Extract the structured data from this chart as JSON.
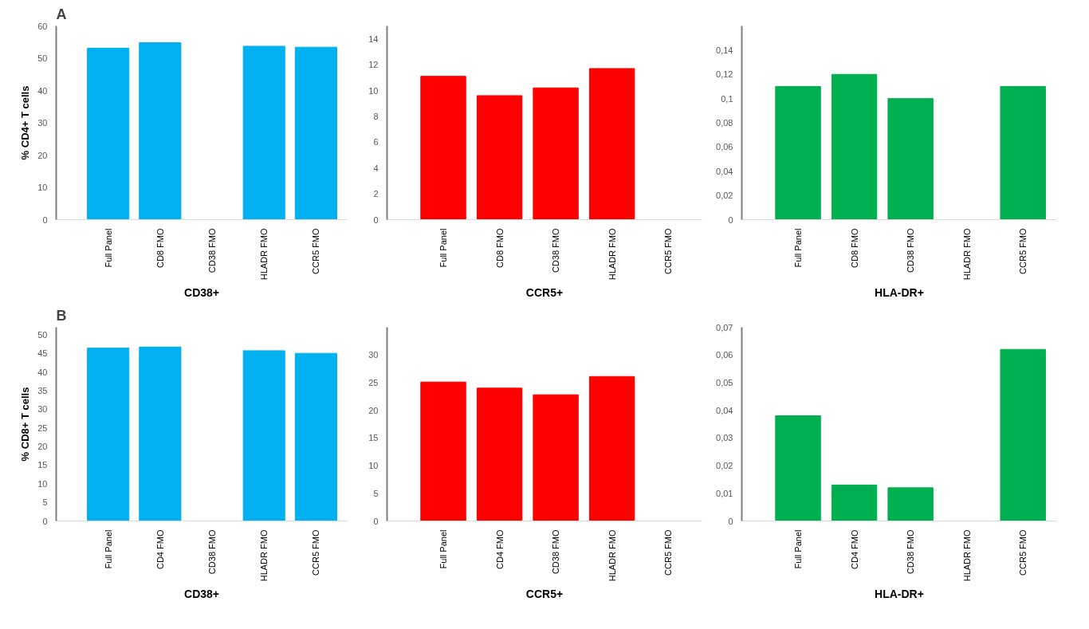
{
  "chart_data": [
    {
      "type": "bar",
      "annotations": [
        "A"
      ],
      "ylabel": "% CD4+ T cells",
      "xlabel": "CD38+",
      "categories": [
        "Full Panel",
        "CD8 FMO",
        "CD38 FMO",
        "HLADR FMO",
        "CCR5 FMO"
      ],
      "values": [
        53.1,
        54.8,
        null,
        53.7,
        53.4
      ],
      "color": "#00b0f0",
      "ylim": [
        0,
        60
      ],
      "yticks": [
        0,
        10,
        20,
        30,
        40,
        50,
        60
      ],
      "grid": false
    },
    {
      "type": "bar",
      "xlabel": "CCR5+",
      "categories": [
        "Full Panel",
        "CD8 FMO",
        "CD38 FMO",
        "HLADR FMO",
        "CCR5 FMO"
      ],
      "values": [
        11.1,
        9.6,
        10.2,
        11.7,
        null
      ],
      "color": "#ff0000",
      "ylim": [
        0,
        15
      ],
      "yticks": [
        0,
        2,
        4,
        6,
        8,
        10,
        12,
        14
      ],
      "grid": false
    },
    {
      "type": "bar",
      "xlabel": "HLA-DR+",
      "categories": [
        "Full Panel",
        "CD8 FMO",
        "CD38 FMO",
        "HLADR FMO",
        "CCR5 FMO"
      ],
      "values": [
        0.11,
        0.12,
        0.1,
        null,
        0.11
      ],
      "color": "#00b050",
      "ylim": [
        0,
        0.16
      ],
      "yticks": [
        0,
        {
          "value": 0.02,
          "label": "0,02"
        },
        {
          "value": 0.04,
          "label": "0,04"
        },
        {
          "value": 0.06,
          "label": "0,06"
        },
        {
          "value": 0.08,
          "label": "0,08"
        },
        {
          "value": 0.1,
          "label": "0,1"
        },
        {
          "value": 0.12,
          "label": "0,12"
        },
        {
          "value": 0.14,
          "label": "0,14"
        }
      ],
      "grid": false
    },
    {
      "type": "bar",
      "annotations": [
        "B"
      ],
      "ylabel": "% CD8+ T cells",
      "xlabel": "CD38+",
      "categories": [
        "Full Panel",
        "CD4 FMO",
        "CD38 FMO",
        "HLADR FMO",
        "CCR5 FMO"
      ],
      "values": [
        46.4,
        46.7,
        null,
        45.7,
        45.0
      ],
      "color": "#00b0f0",
      "ylim": [
        0,
        52
      ],
      "yticks": [
        0,
        5,
        10,
        15,
        20,
        25,
        30,
        35,
        40,
        45,
        50
      ],
      "grid": false
    },
    {
      "type": "bar",
      "xlabel": "CCR5+",
      "categories": [
        "Full Panel",
        "CD4 FMO",
        "CD38 FMO",
        "HLADR FMO",
        "CCR5 FMO"
      ],
      "values": [
        25.1,
        24.0,
        22.8,
        26.1,
        null
      ],
      "color": "#ff0000",
      "ylim": [
        0,
        35
      ],
      "yticks": [
        0,
        5,
        10,
        15,
        20,
        25,
        30
      ],
      "grid": false
    },
    {
      "type": "bar",
      "xlabel": "HLA-DR+",
      "categories": [
        "Full Panel",
        "CD4 FMO",
        "CD38 FMO",
        "HLADR FMO",
        "CCR5 FMO"
      ],
      "values": [
        0.038,
        0.013,
        0.012,
        null,
        0.062
      ],
      "color": "#00b050",
      "ylim": [
        0,
        0.07
      ],
      "yticks": [
        0,
        {
          "value": 0.01,
          "label": "0,01"
        },
        {
          "value": 0.02,
          "label": "0,02"
        },
        {
          "value": 0.03,
          "label": "0,03"
        },
        {
          "value": 0.04,
          "label": "0,04"
        },
        {
          "value": 0.05,
          "label": "0,05"
        },
        {
          "value": 0.06,
          "label": "0,06"
        },
        {
          "value": 0.07,
          "label": "0,07"
        }
      ],
      "grid": false
    }
  ]
}
